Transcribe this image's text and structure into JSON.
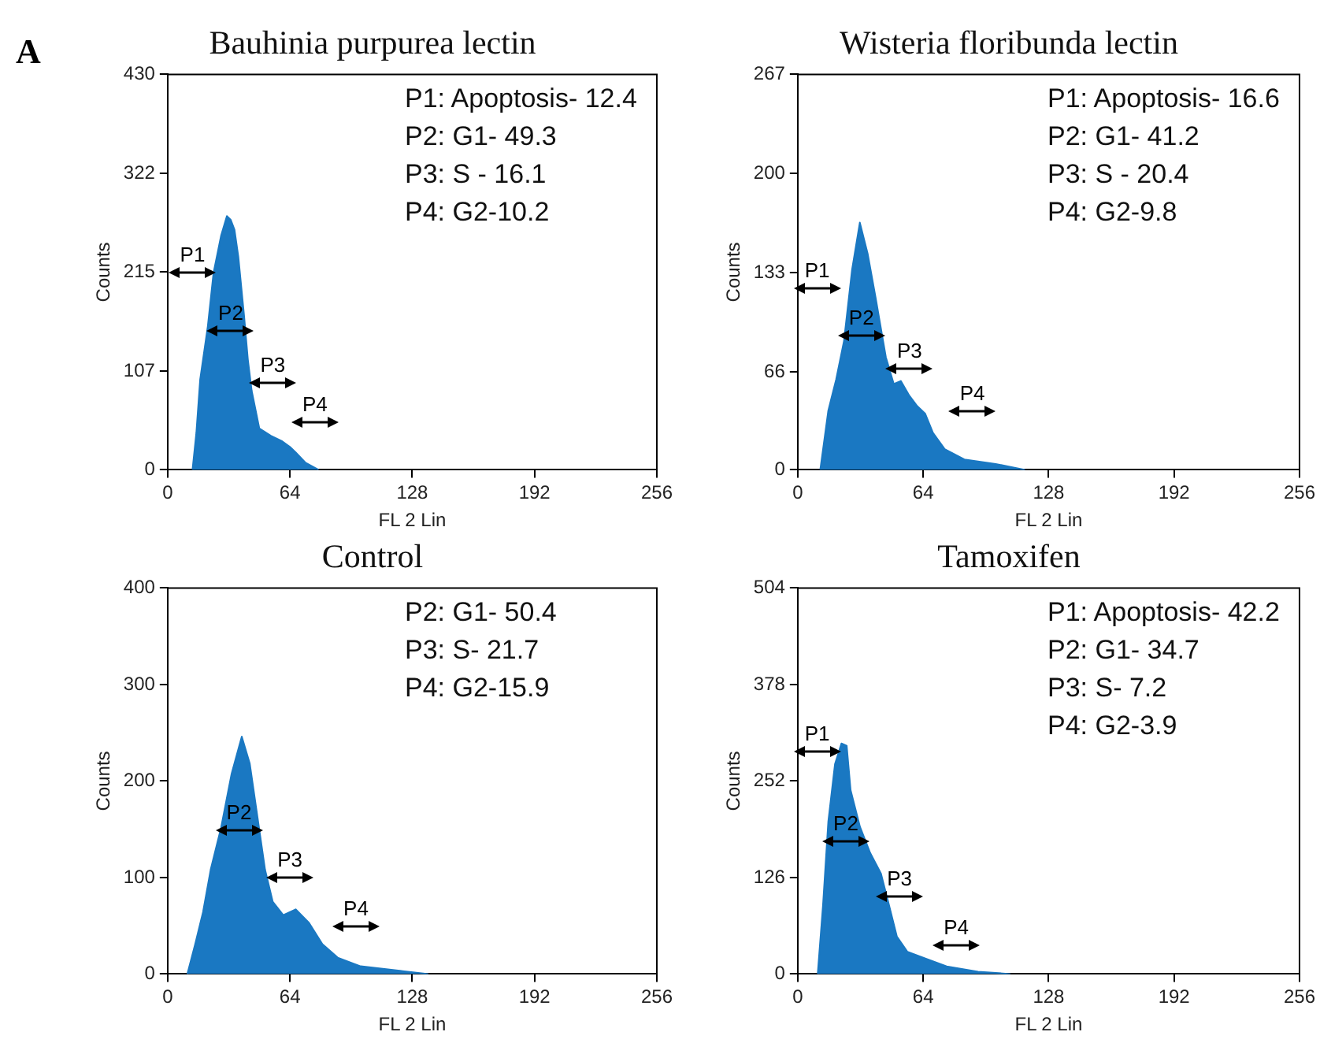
{
  "chart_data": [
    {
      "type": "area",
      "title": "Bauhinia purpurea lectin",
      "subtitle": "A",
      "xlabel": "FL 2 Lin",
      "ylabel": "Counts",
      "marker": "none",
      "grid": false,
      "xlim": [
        0,
        256
      ],
      "xticks": [
        0,
        64,
        128,
        192,
        256
      ],
      "ylim": [
        0,
        430
      ],
      "yticks": [
        0,
        107,
        215,
        322,
        430
      ],
      "series": [
        {
          "color": "#1a78c2",
          "x": [
            13,
            15,
            17,
            21,
            24,
            28,
            31,
            33,
            35,
            37,
            40,
            42,
            44,
            48,
            54,
            60,
            64,
            67,
            72,
            79
          ],
          "values": [
            0,
            40,
            98,
            156,
            214,
            255,
            276,
            272,
            261,
            232,
            168,
            120,
            86,
            45,
            37,
            31,
            25,
            19,
            8,
            0
          ]
        }
      ],
      "annotations": [
        "P1: Apoptosis- 12.4",
        "P2: G1- 49.3",
        "P3: S - 16.1",
        "P4: G2-10.2",
        "P1",
        "P2",
        "P3",
        "P4"
      ]
    },
    {
      "type": "area",
      "title": "Wisteria floribunda lectin",
      "xlabel": "FL 2 Lin",
      "ylabel": "Counts",
      "marker": "none",
      "grid": false,
      "xlim": [
        0,
        256
      ],
      "xticks": [
        0,
        64,
        128,
        192,
        256
      ],
      "ylim": [
        0,
        267
      ],
      "yticks": [
        0,
        66,
        133,
        200,
        267
      ],
      "series": [
        {
          "color": "#1a78c2",
          "x": [
            11.5,
            15.6,
            19.6,
            23.6,
            27.7,
            31.7,
            35.7,
            39.8,
            45,
            49,
            52.6,
            57,
            61,
            65,
            69,
            75,
            85,
            101,
            116
          ],
          "values": [
            0,
            40,
            61,
            87,
            135,
            167,
            146,
            116,
            76,
            58,
            60,
            50,
            43,
            38,
            25,
            14,
            7,
            4,
            0
          ]
        }
      ],
      "annotations": [
        "P1: Apoptosis- 16.6",
        "P2: G1- 41.2",
        "P3: S - 20.4",
        "P4: G2-9.8",
        "P1",
        "P2",
        "P3",
        "P4"
      ]
    },
    {
      "type": "area",
      "title": "Control",
      "xlabel": "FL 2 Lin",
      "ylabel": "Counts",
      "marker": "none",
      "grid": false,
      "xlim": [
        0,
        256
      ],
      "xticks": [
        0,
        64,
        128,
        192,
        256
      ],
      "ylim": [
        0,
        400
      ],
      "yticks": [
        0,
        100,
        200,
        300,
        400
      ],
      "series": [
        {
          "color": "#1a78c2",
          "x": [
            10.3,
            14.4,
            18.5,
            22.5,
            28,
            33.4,
            38.8,
            43,
            47,
            51,
            55,
            60.5,
            67,
            74,
            81,
            89,
            101,
            123,
            136.5
          ],
          "values": [
            0,
            31,
            64,
            108,
            152,
            207,
            246,
            218,
            163,
            108,
            75,
            61,
            67,
            53,
            31,
            17,
            8,
            3,
            0
          ]
        }
      ],
      "annotations": [
        "P2: G1- 50.4",
        "P3: S- 21.7",
        "P4: G2-15.9",
        "P2",
        "P3",
        "P4"
      ]
    },
    {
      "type": "area",
      "title": "Tamoxifen",
      "xlabel": "FL 2 Lin",
      "ylabel": "Counts",
      "marker": "none",
      "grid": false,
      "xlim": [
        0,
        256
      ],
      "xticks": [
        0,
        64,
        128,
        192,
        256
      ],
      "ylim": [
        0,
        504
      ],
      "yticks": [
        0,
        126,
        252,
        378,
        504
      ],
      "series": [
        {
          "color": "#1a78c2",
          "x": [
            10.2,
            12.9,
            15.6,
            19,
            22.3,
            25,
            27,
            31.8,
            37,
            42.5,
            46.6,
            50.6,
            56,
            65.4,
            76,
            92,
            108.5
          ],
          "values": [
            0,
            90,
            199,
            274,
            301,
            298,
            240,
            192,
            158,
            131,
            90,
            49,
            29,
            20,
            10,
            3,
            0
          ]
        }
      ],
      "annotations": [
        "P1: Apoptosis- 42.2",
        "P2: G1- 34.7",
        "P3: S- 7.2",
        "P4: G2-3.9",
        "P1",
        "P2",
        "P3",
        "P4"
      ]
    }
  ]
}
